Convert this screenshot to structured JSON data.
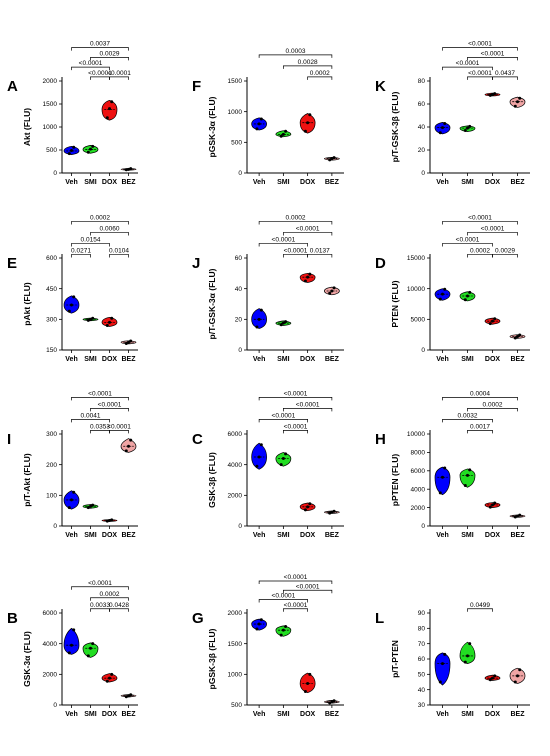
{
  "colors": {
    "Veh": "#0000ff",
    "SMI": "#22dd22",
    "DOX": "#ee1111",
    "BEZ": "#f0a5a5"
  },
  "chart_data": [
    {
      "letter": "A",
      "ylabel": "Akt (FLU)",
      "type": "violin",
      "ylim": [
        0,
        2000
      ],
      "yticks": [
        0,
        500,
        1000,
        1500,
        2000
      ],
      "categories": [
        "Veh",
        "SMI",
        "DOX",
        "BEZ"
      ],
      "violins": [
        {
          "min": 400,
          "q1": 430,
          "median": 480,
          "q3": 540,
          "max": 580,
          "points": [
            420,
            490,
            560
          ]
        },
        {
          "min": 430,
          "q1": 460,
          "median": 510,
          "q3": 560,
          "max": 600,
          "points": [
            450,
            520,
            580
          ]
        },
        {
          "min": 1150,
          "q1": 1200,
          "median": 1380,
          "q3": 1500,
          "max": 1580,
          "points": [
            1200,
            1400,
            1550
          ]
        },
        {
          "min": 60,
          "q1": 70,
          "median": 80,
          "q3": 90,
          "max": 100,
          "points": [
            70,
            80,
            95
          ]
        }
      ],
      "comparisons": [
        {
          "from": 0,
          "to": 3,
          "label": "0.0037"
        },
        {
          "from": 1,
          "to": 3,
          "label": "0.0029"
        },
        {
          "from": 0,
          "to": 2,
          "label": "<0.0001"
        },
        {
          "from": 2,
          "to": 3,
          "label": "<0.0001"
        },
        {
          "from": 1,
          "to": 2,
          "label": "<0.0001"
        }
      ]
    },
    {
      "letter": "E",
      "ylabel": "pAkt (FLU)",
      "type": "violin",
      "ylim": [
        150,
        600
      ],
      "yticks": [
        150,
        300,
        450,
        600
      ],
      "categories": [
        "Veh",
        "SMI",
        "DOX",
        "BEZ"
      ],
      "violins": [
        {
          "min": 330,
          "q1": 345,
          "median": 370,
          "q3": 395,
          "max": 415,
          "points": [
            340,
            370,
            410
          ]
        },
        {
          "min": 293,
          "q1": 296,
          "median": 300,
          "q3": 303,
          "max": 306,
          "points": [
            295,
            300,
            305
          ]
        },
        {
          "min": 265,
          "q1": 272,
          "median": 285,
          "q3": 300,
          "max": 310,
          "points": [
            270,
            285,
            305
          ]
        },
        {
          "min": 180,
          "q1": 183,
          "median": 188,
          "q3": 192,
          "max": 195,
          "points": [
            182,
            188,
            194
          ]
        }
      ],
      "comparisons": [
        {
          "from": 0,
          "to": 3,
          "label": "0.0002"
        },
        {
          "from": 1,
          "to": 3,
          "label": "0.0060"
        },
        {
          "from": 0,
          "to": 2,
          "label": "0.0154"
        },
        {
          "from": 0,
          "to": 1,
          "label": "0.0271"
        },
        {
          "from": 2,
          "to": 3,
          "label": "0.0104"
        }
      ]
    },
    {
      "letter": "I",
      "ylabel": "p/T-Akt (FLU)",
      "type": "violin",
      "ylim": [
        0,
        300
      ],
      "yticks": [
        0,
        100,
        200,
        300
      ],
      "categories": [
        "Veh",
        "SMI",
        "DOX",
        "BEZ"
      ],
      "violins": [
        {
          "min": 55,
          "q1": 65,
          "median": 85,
          "q3": 100,
          "max": 115,
          "points": [
            60,
            85,
            110
          ]
        },
        {
          "min": 58,
          "q1": 60,
          "median": 64,
          "q3": 67,
          "max": 70,
          "points": [
            60,
            64,
            68
          ]
        },
        {
          "min": 15,
          "q1": 16,
          "median": 18,
          "q3": 20,
          "max": 21,
          "points": [
            16,
            18,
            20
          ]
        },
        {
          "min": 240,
          "q1": 248,
          "median": 260,
          "q3": 270,
          "max": 285,
          "points": [
            245,
            260,
            280
          ]
        }
      ],
      "comparisons": [
        {
          "from": 0,
          "to": 3,
          "label": "<0.0001"
        },
        {
          "from": 1,
          "to": 3,
          "label": "<0.0001"
        },
        {
          "from": 0,
          "to": 2,
          "label": "0.0041"
        },
        {
          "from": 2,
          "to": 3,
          "label": "<0.0001"
        },
        {
          "from": 1,
          "to": 2,
          "label": "0.0353"
        }
      ]
    },
    {
      "letter": "B",
      "ylabel": "GSK-3α (FLU)",
      "type": "violin",
      "ylim": [
        0,
        6000
      ],
      "yticks": [
        0,
        2000,
        4000,
        6000
      ],
      "categories": [
        "Veh",
        "SMI",
        "DOX",
        "BEZ"
      ],
      "violins": [
        {
          "min": 3300,
          "q1": 3500,
          "median": 3900,
          "q3": 4500,
          "max": 5000,
          "points": [
            3400,
            3900,
            4900
          ]
        },
        {
          "min": 3100,
          "q1": 3300,
          "median": 3700,
          "q3": 3900,
          "max": 4050,
          "points": [
            3200,
            3700,
            4000
          ]
        },
        {
          "min": 1500,
          "q1": 1600,
          "median": 1750,
          "q3": 1900,
          "max": 2050,
          "points": [
            1550,
            1750,
            2000
          ]
        },
        {
          "min": 520,
          "q1": 560,
          "median": 600,
          "q3": 640,
          "max": 680,
          "points": [
            540,
            600,
            670
          ]
        }
      ],
      "comparisons": [
        {
          "from": 0,
          "to": 3,
          "label": "<0.0001"
        },
        {
          "from": 1,
          "to": 3,
          "label": "0.0002"
        },
        {
          "from": 2,
          "to": 3,
          "label": "0.0428"
        },
        {
          "from": 1,
          "to": 2,
          "label": "0.0033"
        }
      ]
    },
    {
      "letter": "F",
      "ylabel": "pGSK-3α (FLU)",
      "type": "violin",
      "ylim": [
        0,
        1500
      ],
      "yticks": [
        0,
        500,
        1000,
        1500
      ],
      "categories": [
        "Veh",
        "SMI",
        "DOX",
        "BEZ"
      ],
      "violins": [
        {
          "min": 700,
          "q1": 730,
          "median": 800,
          "q3": 860,
          "max": 900,
          "points": [
            720,
            800,
            880
          ]
        },
        {
          "min": 590,
          "q1": 610,
          "median": 630,
          "q3": 660,
          "max": 690,
          "points": [
            600,
            630,
            680
          ]
        },
        {
          "min": 650,
          "q1": 700,
          "median": 820,
          "q3": 900,
          "max": 970,
          "points": [
            680,
            820,
            950
          ]
        },
        {
          "min": 210,
          "q1": 220,
          "median": 235,
          "q3": 245,
          "max": 255,
          "points": [
            215,
            235,
            250
          ]
        }
      ],
      "comparisons": [
        {
          "from": 0,
          "to": 3,
          "label": "0.0003"
        },
        {
          "from": 1,
          "to": 3,
          "label": "0.0028"
        },
        {
          "from": 2,
          "to": 3,
          "label": "0.0002"
        }
      ]
    },
    {
      "letter": "J",
      "ylabel": "p/T-GSK-3α (FLU)",
      "type": "violin",
      "ylim": [
        0,
        60
      ],
      "yticks": [
        0,
        20,
        40,
        60
      ],
      "categories": [
        "Veh",
        "SMI",
        "DOX",
        "BEZ"
      ],
      "violins": [
        {
          "min": 14,
          "q1": 16,
          "median": 20,
          "q3": 24,
          "max": 27,
          "points": [
            15,
            20,
            26
          ]
        },
        {
          "min": 16,
          "q1": 16.5,
          "median": 17.5,
          "q3": 18,
          "max": 19,
          "points": [
            16.5,
            17.5,
            18.5
          ]
        },
        {
          "min": 44,
          "q1": 45,
          "median": 47.5,
          "q3": 49,
          "max": 50,
          "points": [
            45,
            47.5,
            49.5
          ]
        },
        {
          "min": 36,
          "q1": 37,
          "median": 38.5,
          "q3": 40,
          "max": 41,
          "points": [
            37,
            38.5,
            40.5
          ]
        }
      ],
      "comparisons": [
        {
          "from": 0,
          "to": 3,
          "label": "0.0002"
        },
        {
          "from": 1,
          "to": 3,
          "label": "<0.0001"
        },
        {
          "from": 0,
          "to": 2,
          "label": "<0.0001"
        },
        {
          "from": 2,
          "to": 3,
          "label": "0.0137"
        },
        {
          "from": 1,
          "to": 2,
          "label": "<0.0001"
        }
      ]
    },
    {
      "letter": "C",
      "ylabel": "GSK-3β (FLU)",
      "type": "violin",
      "ylim": [
        0,
        6000
      ],
      "yticks": [
        0,
        2000,
        4000,
        6000
      ],
      "categories": [
        "Veh",
        "SMI",
        "DOX",
        "BEZ"
      ],
      "violins": [
        {
          "min": 3700,
          "q1": 4000,
          "median": 4500,
          "q3": 5000,
          "max": 5400,
          "points": [
            3900,
            4500,
            5300
          ]
        },
        {
          "min": 3900,
          "q1": 4100,
          "median": 4400,
          "q3": 4600,
          "max": 4800,
          "points": [
            4000,
            4400,
            4700
          ]
        },
        {
          "min": 1000,
          "q1": 1100,
          "median": 1250,
          "q3": 1400,
          "max": 1500,
          "points": [
            1050,
            1250,
            1450
          ]
        },
        {
          "min": 820,
          "q1": 850,
          "median": 900,
          "q3": 940,
          "max": 980,
          "points": [
            840,
            900,
            960
          ]
        }
      ],
      "comparisons": [
        {
          "from": 0,
          "to": 3,
          "label": "<0.0001"
        },
        {
          "from": 1,
          "to": 3,
          "label": "<0.0001"
        },
        {
          "from": 0,
          "to": 2,
          "label": "<0.0001"
        },
        {
          "from": 1,
          "to": 2,
          "label": "<0.0001"
        }
      ]
    },
    {
      "letter": "G",
      "ylabel": "pGSK-3β (FLU)",
      "type": "violin",
      "ylim": [
        500,
        2000
      ],
      "yticks": [
        500,
        1000,
        1500,
        2000
      ],
      "categories": [
        "Veh",
        "SMI",
        "DOX",
        "BEZ"
      ],
      "violins": [
        {
          "min": 1720,
          "q1": 1760,
          "median": 1820,
          "q3": 1870,
          "max": 1900,
          "points": [
            1740,
            1820,
            1890
          ]
        },
        {
          "min": 1620,
          "q1": 1660,
          "median": 1720,
          "q3": 1760,
          "max": 1790,
          "points": [
            1640,
            1720,
            1780
          ]
        },
        {
          "min": 700,
          "q1": 760,
          "median": 850,
          "q3": 950,
          "max": 1020,
          "points": [
            720,
            850,
            1000
          ]
        },
        {
          "min": 530,
          "q1": 540,
          "median": 550,
          "q3": 560,
          "max": 575,
          "points": [
            535,
            550,
            570
          ]
        }
      ],
      "comparisons": [
        {
          "from": 0,
          "to": 3,
          "label": "<0.0001"
        },
        {
          "from": 1,
          "to": 3,
          "label": "<0.0001"
        },
        {
          "from": 0,
          "to": 2,
          "label": "<0.0001"
        },
        {
          "from": 1,
          "to": 2,
          "label": "<0.0001"
        }
      ]
    },
    {
      "letter": "K",
      "ylabel": "p/T-GSK-3β (FLU)",
      "type": "violin",
      "ylim": [
        0,
        80
      ],
      "yticks": [
        0,
        20,
        40,
        60,
        80
      ],
      "categories": [
        "Veh",
        "SMI",
        "DOX",
        "BEZ"
      ],
      "violins": [
        {
          "min": 34,
          "q1": 36,
          "median": 39.5,
          "q3": 42,
          "max": 44,
          "points": [
            35,
            39.5,
            43
          ]
        },
        {
          "min": 36,
          "q1": 37,
          "median": 39,
          "q3": 40,
          "max": 41,
          "points": [
            37,
            39,
            40.5
          ]
        },
        {
          "min": 67,
          "q1": 67.5,
          "median": 68.2,
          "q3": 68.8,
          "max": 69.5,
          "points": [
            67.5,
            68.2,
            69
          ]
        },
        {
          "min": 57,
          "q1": 59,
          "median": 62,
          "q3": 64,
          "max": 66,
          "points": [
            58,
            62,
            65
          ]
        }
      ],
      "comparisons": [
        {
          "from": 0,
          "to": 3,
          "label": "<0.0001"
        },
        {
          "from": 1,
          "to": 3,
          "label": "<0.0001"
        },
        {
          "from": 0,
          "to": 2,
          "label": "<0.0001"
        },
        {
          "from": 2,
          "to": 3,
          "label": "0.0437"
        },
        {
          "from": 1,
          "to": 2,
          "label": "<0.0001"
        }
      ]
    },
    {
      "letter": "D",
      "ylabel": "PTEN  (FLU)",
      "type": "violin",
      "ylim": [
        0,
        15000
      ],
      "yticks": [
        0,
        5000,
        10000,
        15000
      ],
      "categories": [
        "Veh",
        "SMI",
        "DOX",
        "BEZ"
      ],
      "violins": [
        {
          "min": 8100,
          "q1": 8500,
          "median": 9100,
          "q3": 9600,
          "max": 10000,
          "points": [
            8300,
            9100,
            9900
          ]
        },
        {
          "min": 8000,
          "q1": 8300,
          "median": 8800,
          "q3": 9200,
          "max": 9500,
          "points": [
            8200,
            8800,
            9400
          ]
        },
        {
          "min": 4200,
          "q1": 4400,
          "median": 4700,
          "q3": 5000,
          "max": 5200,
          "points": [
            4300,
            4700,
            5100
          ]
        },
        {
          "min": 1900,
          "q1": 2000,
          "median": 2200,
          "q3": 2400,
          "max": 2500,
          "points": [
            1950,
            2200,
            2450
          ]
        }
      ],
      "comparisons": [
        {
          "from": 0,
          "to": 3,
          "label": "<0.0001"
        },
        {
          "from": 1,
          "to": 3,
          "label": "<0.0001"
        },
        {
          "from": 0,
          "to": 2,
          "label": "<0.0001"
        },
        {
          "from": 2,
          "to": 3,
          "label": "0.0029"
        },
        {
          "from": 1,
          "to": 2,
          "label": "0.0002"
        }
      ]
    },
    {
      "letter": "H",
      "ylabel": "pPTEN  (FLU)",
      "type": "violin",
      "ylim": [
        0,
        10000
      ],
      "yticks": [
        0,
        2000,
        4000,
        6000,
        8000,
        10000
      ],
      "categories": [
        "Veh",
        "SMI",
        "DOX",
        "BEZ"
      ],
      "violins": [
        {
          "min": 3400,
          "q1": 4000,
          "median": 5300,
          "q3": 6000,
          "max": 6400,
          "points": [
            3600,
            5300,
            6300
          ]
        },
        {
          "min": 4200,
          "q1": 4700,
          "median": 5500,
          "q3": 5900,
          "max": 6200,
          "points": [
            4400,
            5500,
            6100
          ]
        },
        {
          "min": 2000,
          "q1": 2100,
          "median": 2300,
          "q3": 2450,
          "max": 2550,
          "points": [
            2050,
            2300,
            2500
          ]
        },
        {
          "min": 950,
          "q1": 1000,
          "median": 1080,
          "q3": 1150,
          "max": 1200,
          "points": [
            980,
            1080,
            1180
          ]
        }
      ],
      "comparisons": [
        {
          "from": 0,
          "to": 3,
          "label": "0.0004"
        },
        {
          "from": 1,
          "to": 3,
          "label": "0.0002"
        },
        {
          "from": 0,
          "to": 2,
          "label": "0.0032"
        },
        {
          "from": 1,
          "to": 2,
          "label": "0.0017"
        }
      ]
    },
    {
      "letter": "L",
      "ylabel": "p/T-PTEN",
      "type": "violin",
      "ylim": [
        30,
        90
      ],
      "yticks": [
        30,
        40,
        50,
        60,
        70,
        80,
        90
      ],
      "categories": [
        "Veh",
        "SMI",
        "DOX",
        "BEZ"
      ],
      "violins": [
        {
          "min": 43,
          "q1": 48,
          "median": 57,
          "q3": 62,
          "max": 64,
          "points": [
            45,
            57,
            63
          ]
        },
        {
          "min": 57,
          "q1": 58.5,
          "median": 62,
          "q3": 67,
          "max": 71,
          "points": [
            58,
            62,
            70
          ]
        },
        {
          "min": 46,
          "q1": 46.5,
          "median": 47.5,
          "q3": 48.5,
          "max": 49.5,
          "points": [
            46.5,
            47.5,
            49
          ]
        },
        {
          "min": 44,
          "q1": 46,
          "median": 49,
          "q3": 52,
          "max": 54,
          "points": [
            45,
            49,
            53
          ]
        }
      ],
      "comparisons": [
        {
          "from": 1,
          "to": 2,
          "label": "0.0499"
        }
      ]
    }
  ]
}
